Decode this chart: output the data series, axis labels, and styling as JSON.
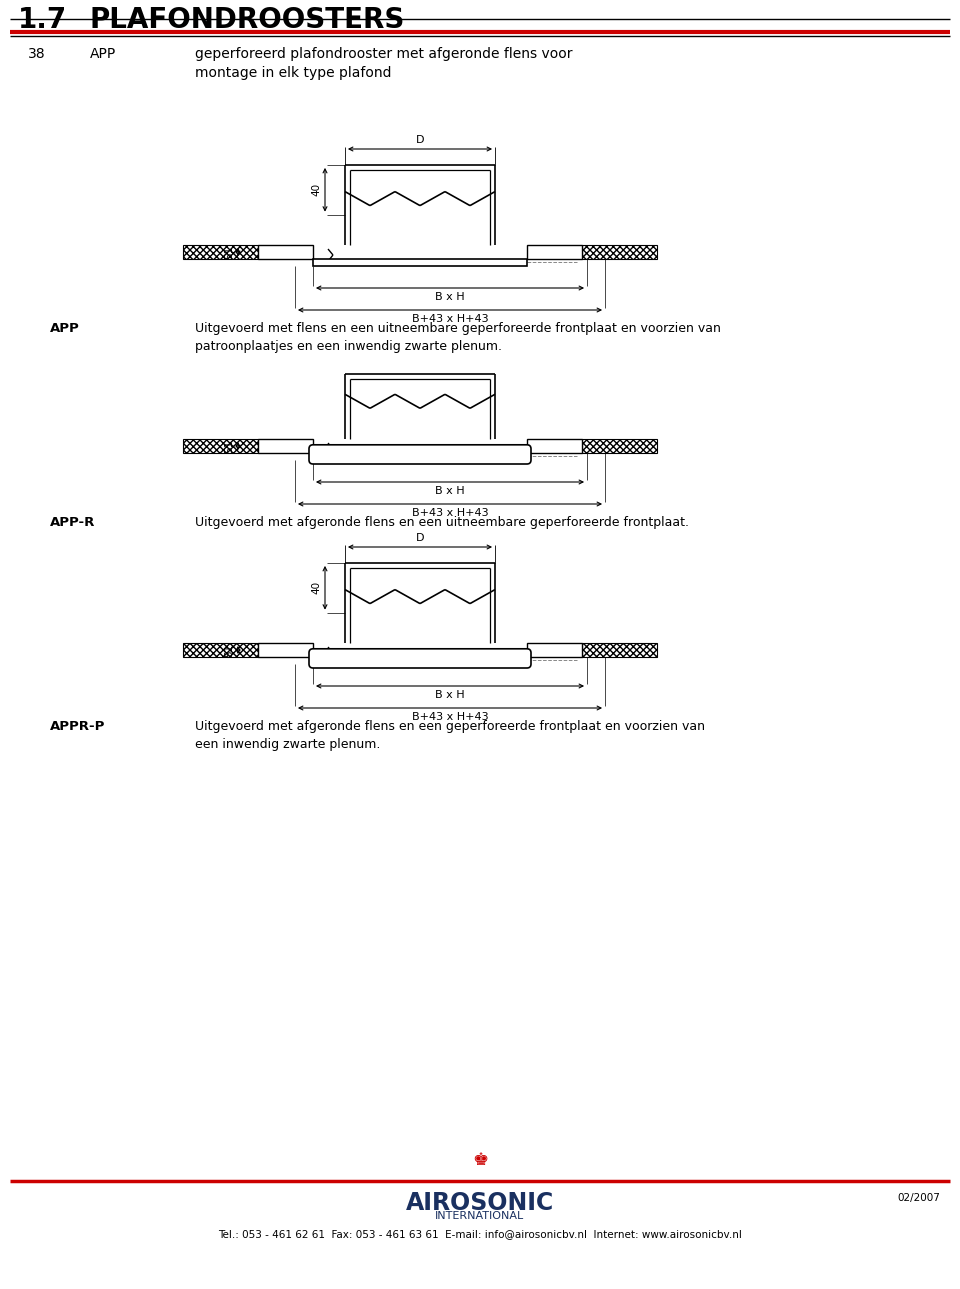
{
  "title_num": "1.7",
  "title_text": "PLAFONDROOSTERS",
  "header_num": "38",
  "header_code": "APP",
  "header_desc": "geperforeerd plafondrooster met afgeronde flens voor\nmontage in elk type plafond",
  "app_label": "APP",
  "app_desc": "Uitgevoerd met flens en een uitneembare geperforeerde frontplaat en voorzien van\npatroonplaatjes en een inwendig zwarte plenum.",
  "appr_label": "APP-R",
  "appr_desc": "Uitgevoerd met afgeronde flens en een uitneembare geperforeerde frontplaat.",
  "apprp_label": "APPR-P",
  "apprp_desc": "Uitgevoerd met afgeronde flens en een geperforeerde frontplaat en voorzien van\neen inwendig zwarte plenum.",
  "footer_company": "AIROSONIC",
  "footer_intl": "INTERNATIONAL",
  "footer_contact": "Tel.: 053 - 461 62 61  Fax: 053 - 461 63 61  E-mail: info@airosonicbv.nl  Internet: www.airosonicbv.nl",
  "footer_date": "02/2007",
  "line_color": "#000000",
  "bg_color": "#ffffff",
  "red_color": "#cc0000",
  "dark_blue": "#1a3060"
}
